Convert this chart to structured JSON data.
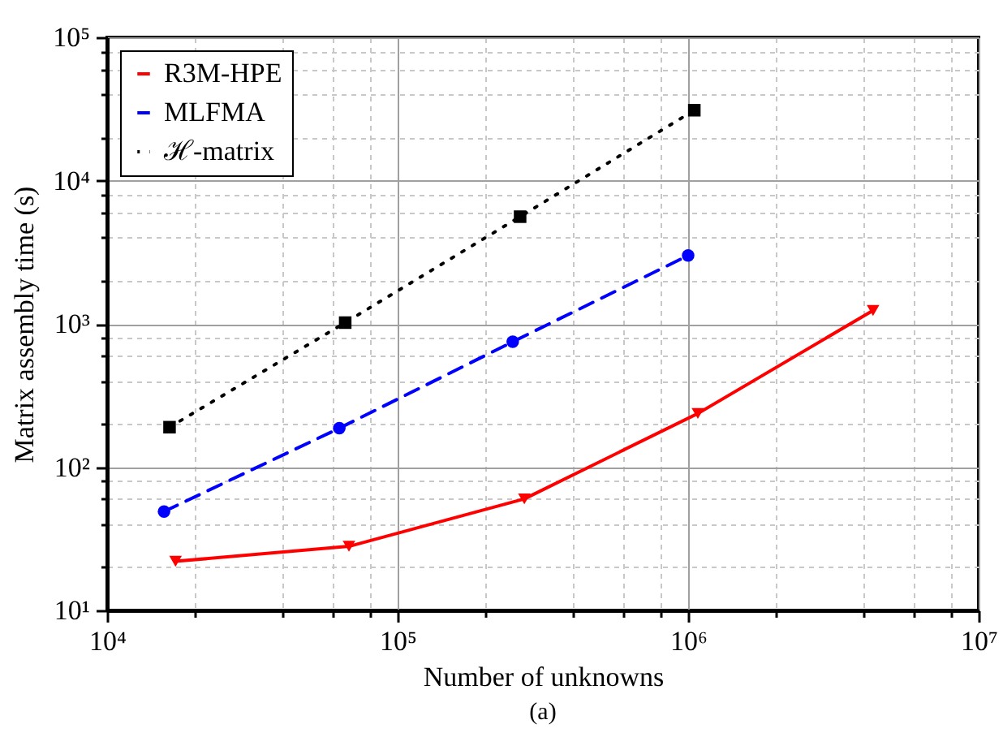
{
  "chart_data": {
    "type": "line",
    "xlabel": "Number of unknowns",
    "ylabel": "Matrix assembly time (s)",
    "annotations": [
      "(a)"
    ],
    "log": "xy",
    "grid": true,
    "legend": "top left",
    "xlim": [
      10000,
      10000000
    ],
    "xticks": [
      {
        "value": 10000,
        "label": "10⁴"
      },
      {
        "value": 20000,
        "label": null
      },
      {
        "value": 40000,
        "label": null
      },
      {
        "value": 60000,
        "label": null
      },
      {
        "value": 80000,
        "label": null
      },
      {
        "value": 100000,
        "label": "10⁵"
      },
      {
        "value": 200000,
        "label": null
      },
      {
        "value": 400000,
        "label": null
      },
      {
        "value": 600000,
        "label": null
      },
      {
        "value": 800000,
        "label": null
      },
      {
        "value": 1000000,
        "label": "10⁶"
      },
      {
        "value": 2000000,
        "label": null
      },
      {
        "value": 4000000,
        "label": null
      },
      {
        "value": 6000000,
        "label": null
      },
      {
        "value": 8000000,
        "label": null
      },
      {
        "value": 10000000,
        "label": "10⁷"
      }
    ],
    "ylim": [
      10,
      100000
    ],
    "yticks": [
      {
        "value": 10,
        "label": "10¹"
      },
      {
        "value": 20,
        "label": null
      },
      {
        "value": 40,
        "label": null
      },
      {
        "value": 60,
        "label": null
      },
      {
        "value": 80,
        "label": null
      },
      {
        "value": 100,
        "label": "10²"
      },
      {
        "value": 200,
        "label": null
      },
      {
        "value": 400,
        "label": null
      },
      {
        "value": 600,
        "label": null
      },
      {
        "value": 800,
        "label": null
      },
      {
        "value": 1000,
        "label": "10³"
      },
      {
        "value": 2000,
        "label": null
      },
      {
        "value": 4000,
        "label": null
      },
      {
        "value": 6000,
        "label": null
      },
      {
        "value": 8000,
        "label": null
      },
      {
        "value": 10000,
        "label": "10⁴"
      },
      {
        "value": 20000,
        "label": null
      },
      {
        "value": 40000,
        "label": null
      },
      {
        "value": 60000,
        "label": null
      },
      {
        "value": 80000,
        "label": null
      },
      {
        "value": 100000,
        "label": "10⁵"
      }
    ],
    "series": [
      {
        "name": "R3M-HPE",
        "color": "#ff0000",
        "marker": "triangle",
        "line_style": "solid",
        "x": [
          17200,
          68000,
          273000,
          1080000,
          4330000
        ],
        "values": [
          22,
          28,
          60,
          237,
          1240
        ]
      },
      {
        "name": "MLFMA",
        "color": "#0000ff",
        "marker": "circle",
        "line_style": "dashed",
        "x": [
          15700,
          63000,
          249000,
          1000000
        ],
        "values": [
          49,
          187,
          750,
          3000
        ]
      },
      {
        "name": "ℋ-matrix",
        "color": "#000000",
        "marker": "square",
        "line_style": "dotted",
        "x": [
          16400,
          66000,
          264000,
          1050000
        ],
        "values": [
          190,
          1020,
          5600,
          31000
        ]
      }
    ]
  }
}
